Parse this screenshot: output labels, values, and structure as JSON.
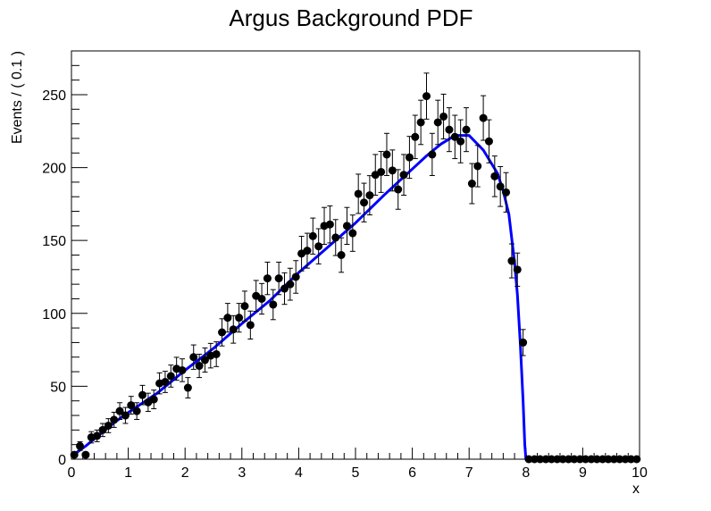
{
  "chart_data": {
    "type": "scatter",
    "title": "Argus Background PDF",
    "xlabel": "x",
    "ylabel": "Events / ( 0.1 )",
    "xlim": [
      0,
      10
    ],
    "ylim": [
      0,
      280
    ],
    "x_ticks": [
      0,
      1,
      2,
      3,
      4,
      5,
      6,
      7,
      8,
      9,
      10
    ],
    "x_tick_labels": [
      "0",
      "1",
      "2",
      "3",
      "4",
      "5",
      "6",
      "7",
      "8",
      "9",
      "10"
    ],
    "y_ticks": [
      0,
      50,
      100,
      150,
      200,
      250
    ],
    "y_tick_labels": [
      "0",
      "50",
      "100",
      "150",
      "200",
      "250"
    ],
    "grid": false,
    "legend": "none",
    "colors": {
      "data": "#000000",
      "fit": "#0000ff"
    },
    "series": [
      {
        "kind": "points_with_errors",
        "x": [
          0.05,
          0.15,
          0.25,
          0.35,
          0.45,
          0.55,
          0.65,
          0.75,
          0.85,
          0.95,
          1.05,
          1.15,
          1.25,
          1.35,
          1.45,
          1.55,
          1.65,
          1.75,
          1.85,
          1.95,
          2.05,
          2.15,
          2.25,
          2.35,
          2.45,
          2.55,
          2.65,
          2.75,
          2.85,
          2.95,
          3.05,
          3.15,
          3.25,
          3.35,
          3.45,
          3.55,
          3.65,
          3.75,
          3.85,
          3.95,
          4.05,
          4.15,
          4.25,
          4.35,
          4.45,
          4.55,
          4.65,
          4.75,
          4.85,
          4.95,
          5.05,
          5.15,
          5.25,
          5.35,
          5.45,
          5.55,
          5.65,
          5.75,
          5.85,
          5.95,
          6.05,
          6.15,
          6.25,
          6.35,
          6.45,
          6.55,
          6.65,
          6.75,
          6.85,
          6.95,
          7.05,
          7.15,
          7.25,
          7.35,
          7.45,
          7.55,
          7.65,
          7.75,
          7.85,
          7.95,
          8.05,
          8.15,
          8.25,
          8.35,
          8.45,
          8.55,
          8.65,
          8.75,
          8.85,
          8.95,
          9.05,
          9.15,
          9.25,
          9.35,
          9.45,
          9.55,
          9.65,
          9.75,
          9.85,
          9.95
        ],
        "y": [
          3,
          9,
          3,
          15,
          16,
          20,
          23,
          27,
          33,
          30,
          37,
          33,
          44,
          39,
          41,
          52,
          53,
          57,
          62,
          61,
          49,
          70,
          64,
          68,
          71,
          72,
          87,
          97,
          89,
          97,
          105,
          92,
          112,
          110,
          124,
          106,
          124,
          117,
          120,
          125,
          141,
          143,
          153,
          146,
          160,
          161,
          152,
          140,
          160,
          155,
          182,
          176,
          181,
          195,
          197,
          209,
          198,
          185,
          195,
          207,
          221,
          231,
          249,
          209,
          231,
          235,
          226,
          221,
          218,
          226,
          189,
          201,
          234,
          218,
          194,
          187,
          183,
          136,
          130,
          80,
          0,
          0,
          0,
          0,
          0,
          0,
          0,
          0,
          0,
          0,
          0,
          0,
          0,
          0,
          0,
          0,
          0,
          0,
          0,
          0
        ]
      },
      {
        "kind": "fit_curve",
        "x": [
          0.0,
          0.25,
          0.5,
          0.75,
          1.0,
          1.5,
          2.0,
          2.5,
          3.0,
          3.5,
          4.0,
          4.5,
          5.0,
          5.5,
          6.0,
          6.25,
          6.5,
          6.75,
          7.0,
          7.25,
          7.5,
          7.6,
          7.7,
          7.8,
          7.85,
          7.9,
          7.95,
          7.98,
          8.0,
          8.05,
          10.0
        ],
        "y": [
          2,
          9,
          17,
          25,
          32,
          45,
          61,
          76,
          93,
          109,
          128,
          145,
          162,
          181,
          199,
          208,
          216,
          222,
          222,
          212,
          196,
          184,
          168,
          135,
          113,
          80,
          40,
          10,
          0,
          0,
          0
        ]
      }
    ]
  }
}
